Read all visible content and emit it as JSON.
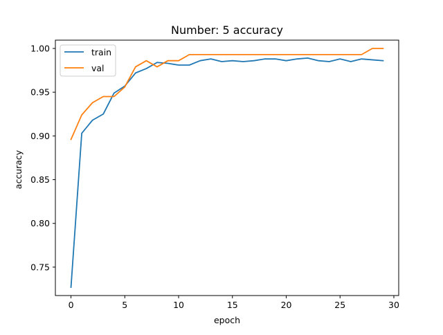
{
  "chart_data": {
    "type": "line",
    "title": "Number: 5 accuracy",
    "xlabel": "epoch",
    "ylabel": "accuracy",
    "xlim": [
      -1.45,
      30.45
    ],
    "ylim": [
      0.7175,
      1.0095
    ],
    "xticks": [
      0,
      5,
      10,
      15,
      20,
      25,
      30
    ],
    "yticks": [
      0.75,
      0.8,
      0.85,
      0.9,
      0.95,
      1.0
    ],
    "xtick_labels": [
      "0",
      "5",
      "10",
      "15",
      "20",
      "25",
      "30"
    ],
    "ytick_labels": [
      "0.75",
      "0.80",
      "0.85",
      "0.90",
      "0.95",
      "1.00"
    ],
    "grid": false,
    "legend_position": "upper-left",
    "x": [
      0,
      1,
      2,
      3,
      4,
      5,
      6,
      7,
      8,
      9,
      10,
      11,
      12,
      13,
      14,
      15,
      16,
      17,
      18,
      19,
      20,
      21,
      22,
      23,
      24,
      25,
      26,
      27,
      28,
      29
    ],
    "series": [
      {
        "name": "train",
        "color": "#1f77b4",
        "values": [
          0.727,
          0.903,
          0.918,
          0.925,
          0.949,
          0.957,
          0.972,
          0.977,
          0.984,
          0.983,
          0.981,
          0.981,
          0.986,
          0.988,
          0.985,
          0.986,
          0.985,
          0.986,
          0.988,
          0.988,
          0.986,
          0.988,
          0.989,
          0.986,
          0.985,
          0.988,
          0.985,
          0.988,
          0.987,
          0.986
        ]
      },
      {
        "name": "val",
        "color": "#ff7f0e",
        "values": [
          0.896,
          0.924,
          0.938,
          0.945,
          0.945,
          0.956,
          0.979,
          0.986,
          0.979,
          0.986,
          0.986,
          0.993,
          0.993,
          0.993,
          0.993,
          0.993,
          0.993,
          0.993,
          0.993,
          0.993,
          0.993,
          0.993,
          0.993,
          0.993,
          0.993,
          0.993,
          0.993,
          0.993,
          1.0,
          1.0
        ]
      }
    ]
  }
}
